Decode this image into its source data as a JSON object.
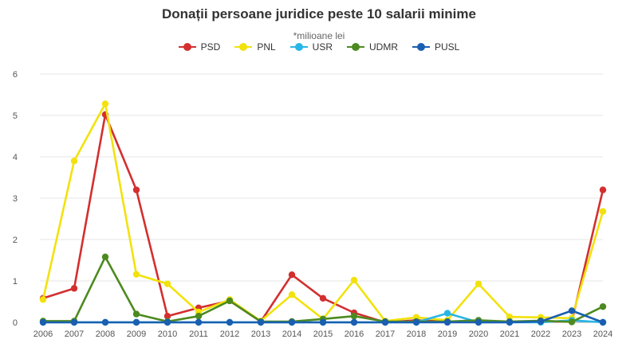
{
  "chart_data": {
    "type": "line",
    "title": "Donații persoane juridice peste 10 salarii minime",
    "subtitle": "*milioane lei",
    "x": [
      "2006",
      "2007",
      "2008",
      "2009",
      "2010",
      "2011",
      "2012",
      "2013",
      "2014",
      "2015",
      "2016",
      "2017",
      "2018",
      "2019",
      "2020",
      "2021",
      "2022",
      "2023",
      "2024"
    ],
    "ylim": [
      0,
      6
    ],
    "yticks": [
      0,
      1,
      2,
      3,
      4,
      5,
      6
    ],
    "grid": true,
    "legend_position": "top-center",
    "series": [
      {
        "name": "PSD",
        "color": "#d32f2f",
        "values": [
          0.58,
          0.82,
          5.02,
          3.2,
          0.15,
          0.35,
          0.52,
          0.02,
          1.15,
          0.58,
          0.23,
          0.0,
          0.05,
          0.02,
          0.02,
          0.01,
          0.02,
          0.02,
          3.2
        ]
      },
      {
        "name": "PNL",
        "color": "#f2e20c",
        "values": [
          0.55,
          3.9,
          5.28,
          1.16,
          0.93,
          0.25,
          0.55,
          0.03,
          0.67,
          0.08,
          1.02,
          0.03,
          0.12,
          0.05,
          0.93,
          0.13,
          0.12,
          0.1,
          2.68
        ]
      },
      {
        "name": "USR",
        "color": "#29b6e6",
        "values": [
          0,
          0,
          0,
          0,
          0,
          0,
          0,
          0,
          0,
          0,
          0,
          0,
          0,
          0.22,
          0,
          0,
          0,
          0.05,
          0
        ]
      },
      {
        "name": "UDMR",
        "color": "#4c8a1f",
        "values": [
          0.03,
          0.03,
          1.58,
          0.2,
          0.02,
          0.15,
          0.52,
          0.02,
          0.02,
          0.08,
          0.15,
          0.02,
          0.02,
          0.02,
          0.05,
          0.02,
          0.04,
          0.01,
          0.38
        ]
      },
      {
        "name": "PUSL",
        "color": "#1a5fb0",
        "values": [
          0,
          0,
          0,
          0,
          0,
          0,
          0,
          0,
          0,
          0,
          0,
          0,
          0,
          0,
          0,
          0,
          0.02,
          0.28,
          0
        ]
      }
    ]
  }
}
